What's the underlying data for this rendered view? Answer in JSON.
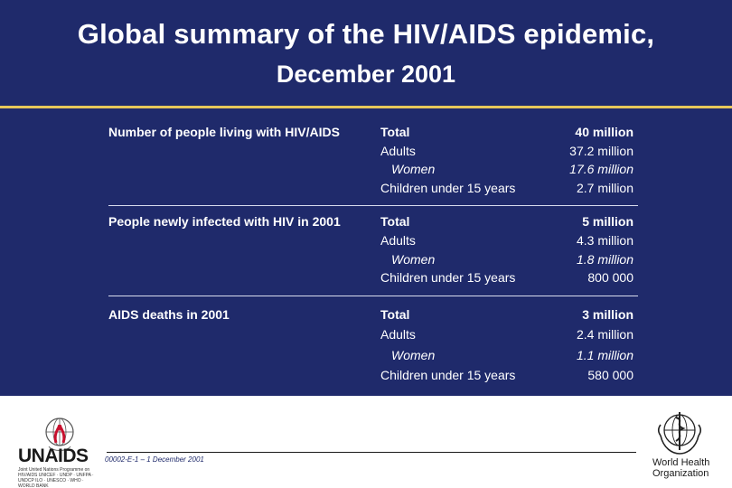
{
  "title_line1": "Global summary of the HIV/AIDS epidemic,",
  "title_line2": "December 2001",
  "sections": [
    {
      "label": "Number of people living with HIV/AIDS",
      "rows": [
        {
          "category": "Total",
          "value": "40 million"
        },
        {
          "category": "Adults",
          "value": "37.2 million"
        },
        {
          "category": "Women",
          "value": "17.6 million"
        },
        {
          "category": "Children under 15 years",
          "value": "2.7 million"
        }
      ]
    },
    {
      "label": "People newly infected with HIV in 2001",
      "rows": [
        {
          "category": "Total",
          "value": "5 million"
        },
        {
          "category": "Adults",
          "value": "4.3 million"
        },
        {
          "category": "Women",
          "value": "1.8 million"
        },
        {
          "category": "Children under 15 years",
          "value": "800 000"
        }
      ]
    },
    {
      "label": "AIDS deaths in 2001",
      "rows": [
        {
          "category": "Total",
          "value": "3 million"
        },
        {
          "category": "Adults",
          "value": "2.4 million"
        },
        {
          "category": "Women",
          "value": "1.1 million"
        },
        {
          "category": "Children under 15 years",
          "value": "580 000"
        }
      ]
    }
  ],
  "footer": {
    "reference": "00002-E-1 – 1 December 2001",
    "unaids_wordmark": "UNAIDS",
    "unaids_sponsors": "Joint United Nations Programme on HIV/AIDS UNICEF · UNDP · UNFPA · UNDCP ILO · UNESCO · WHO · WORLD BANK",
    "who_line1": "World Health",
    "who_line2": "Organization"
  },
  "colors": {
    "background_navy": "#1f2a6b",
    "accent_gold": "#e7c75a",
    "text_white": "#ffffff",
    "ribbon_red": "#c8102e"
  }
}
